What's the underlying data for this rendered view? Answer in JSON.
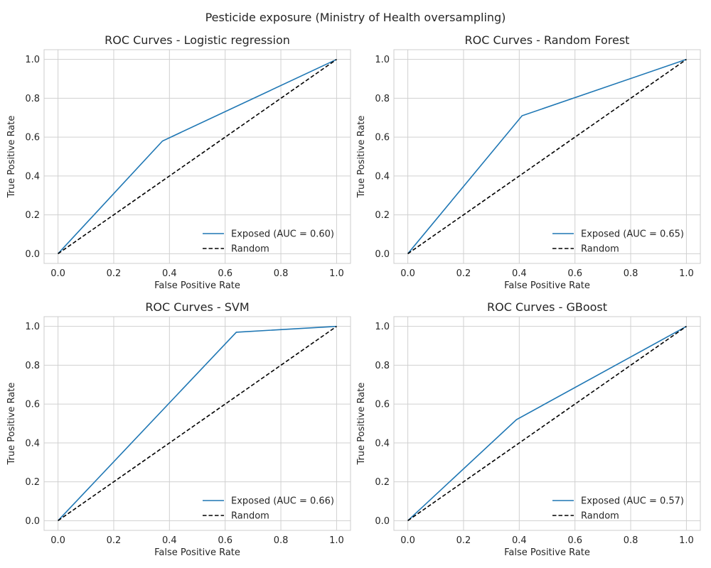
{
  "figure": {
    "suptitle": "Pesticide exposure (Ministry of Health oversampling)"
  },
  "chart_data": [
    {
      "type": "line",
      "title": "ROC Curves - Logistic regression",
      "xlabel": "False Positive Rate",
      "ylabel": "True Positive Rate",
      "xlim": [
        -0.05,
        1.05
      ],
      "ylim": [
        -0.05,
        1.05
      ],
      "xticks": [
        "0.0",
        "0.2",
        "0.4",
        "0.6",
        "0.8",
        "1.0"
      ],
      "yticks": [
        "0.0",
        "0.2",
        "0.4",
        "0.6",
        "0.8",
        "1.0"
      ],
      "grid": true,
      "legend_position": "lower-right",
      "series": [
        {
          "name": "Exposed (AUC = 0.60)",
          "color": "#1f77b4",
          "style": "solid",
          "x": [
            0.0,
            0.375,
            1.0
          ],
          "y": [
            0.0,
            0.58,
            1.0
          ]
        },
        {
          "name": "Random",
          "color": "#000000",
          "style": "dashed",
          "x": [
            0.0,
            1.0
          ],
          "y": [
            0.0,
            1.0
          ]
        }
      ]
    },
    {
      "type": "line",
      "title": "ROC Curves - Random Forest",
      "xlabel": "False Positive Rate",
      "ylabel": "True Positive Rate",
      "xlim": [
        -0.05,
        1.05
      ],
      "ylim": [
        -0.05,
        1.05
      ],
      "xticks": [
        "0.0",
        "0.2",
        "0.4",
        "0.6",
        "0.8",
        "1.0"
      ],
      "yticks": [
        "0.0",
        "0.2",
        "0.4",
        "0.6",
        "0.8",
        "1.0"
      ],
      "grid": true,
      "legend_position": "lower-right",
      "series": [
        {
          "name": "Exposed (AUC = 0.65)",
          "color": "#1f77b4",
          "style": "solid",
          "x": [
            0.0,
            0.41,
            1.0
          ],
          "y": [
            0.0,
            0.71,
            1.0
          ]
        },
        {
          "name": "Random",
          "color": "#000000",
          "style": "dashed",
          "x": [
            0.0,
            1.0
          ],
          "y": [
            0.0,
            1.0
          ]
        }
      ]
    },
    {
      "type": "line",
      "title": "ROC Curves - SVM",
      "xlabel": "False Positive Rate",
      "ylabel": "True Positive Rate",
      "xlim": [
        -0.05,
        1.05
      ],
      "ylim": [
        -0.05,
        1.05
      ],
      "xticks": [
        "0.0",
        "0.2",
        "0.4",
        "0.6",
        "0.8",
        "1.0"
      ],
      "yticks": [
        "0.0",
        "0.2",
        "0.4",
        "0.6",
        "0.8",
        "1.0"
      ],
      "grid": true,
      "legend_position": "lower-right",
      "series": [
        {
          "name": "Exposed (AUC = 0.66)",
          "color": "#1f77b4",
          "style": "solid",
          "x": [
            0.0,
            0.64,
            1.0
          ],
          "y": [
            0.0,
            0.97,
            1.0
          ]
        },
        {
          "name": "Random",
          "color": "#000000",
          "style": "dashed",
          "x": [
            0.0,
            1.0
          ],
          "y": [
            0.0,
            1.0
          ]
        }
      ]
    },
    {
      "type": "line",
      "title": "ROC Curves - GBoost",
      "xlabel": "False Positive Rate",
      "ylabel": "True Positive Rate",
      "xlim": [
        -0.05,
        1.05
      ],
      "ylim": [
        -0.05,
        1.05
      ],
      "xticks": [
        "0.0",
        "0.2",
        "0.4",
        "0.6",
        "0.8",
        "1.0"
      ],
      "yticks": [
        "0.0",
        "0.2",
        "0.4",
        "0.6",
        "0.8",
        "1.0"
      ],
      "grid": true,
      "legend_position": "lower-right",
      "series": [
        {
          "name": "Exposed (AUC = 0.57)",
          "color": "#1f77b4",
          "style": "solid",
          "x": [
            0.0,
            0.39,
            1.0
          ],
          "y": [
            0.0,
            0.52,
            1.0
          ]
        },
        {
          "name": "Random",
          "color": "#000000",
          "style": "dashed",
          "x": [
            0.0,
            1.0
          ],
          "y": [
            0.0,
            1.0
          ]
        }
      ]
    }
  ]
}
